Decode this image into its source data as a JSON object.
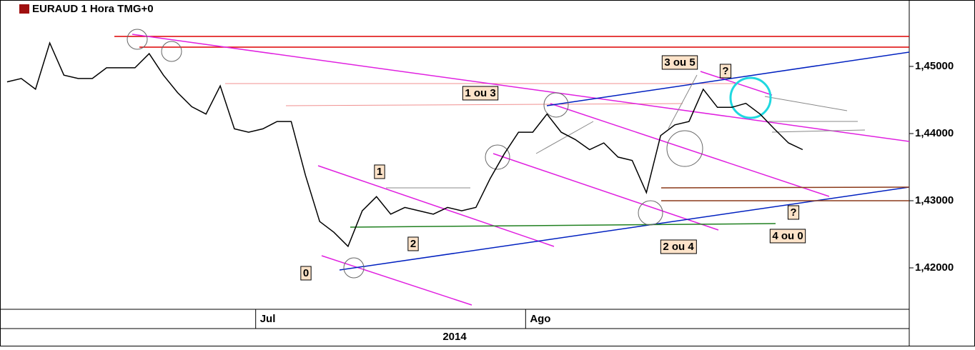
{
  "chart_data": {
    "type": "line",
    "title": "EURAUD 1 Hora TMG+0",
    "categories": [
      null,
      null,
      null,
      null,
      null,
      null,
      null,
      null,
      null,
      null,
      null,
      null,
      null,
      null,
      null,
      null,
      null,
      null,
      "Jul",
      null,
      null,
      null,
      null,
      null,
      null,
      null,
      null,
      null,
      null,
      null,
      null,
      null,
      null,
      null,
      null,
      null,
      null,
      "Ago",
      null,
      null,
      null,
      null,
      null,
      null,
      null,
      null,
      null,
      null,
      null,
      null,
      null,
      null,
      null,
      null,
      null,
      null,
      null,
      null,
      null,
      null,
      null,
      null,
      null,
      null
    ],
    "x_sublabel": "2014",
    "values": [
      1.4477,
      1.4482,
      1.4466,
      1.4535,
      1.4487,
      1.4482,
      1.4482,
      1.4498,
      1.4498,
      1.4498,
      1.4519,
      1.4487,
      1.4461,
      1.444,
      1.4429,
      1.4471,
      1.4407,
      1.4402,
      1.4407,
      1.4418,
      1.4418,
      1.4338,
      1.4269,
      1.4253,
      1.4232,
      1.4285,
      1.4306,
      1.428,
      1.429,
      1.4285,
      1.428,
      1.429,
      1.4285,
      1.429,
      1.4333,
      1.437,
      1.4402,
      1.4402,
      1.4429,
      1.4402,
      1.4391,
      1.4376,
      1.4386,
      1.4365,
      1.436,
      1.4312,
      1.4397,
      1.4413,
      1.4418,
      1.4466,
      1.4439,
      1.4439,
      1.4445,
      1.4429,
      1.4407,
      1.4386,
      1.4376,
      null,
      null,
      null,
      null,
      null,
      null,
      null
    ],
    "color": "#000000",
    "ylim": [
      1.41383,
      1.45989
    ],
    "yticks": [
      {
        "value": 1.42,
        "label": "1,42000"
      },
      {
        "value": 1.43,
        "label": "1,43000"
      },
      {
        "value": 1.44,
        "label": "1,44000"
      },
      {
        "value": 1.45,
        "label": "1,45000"
      }
    ],
    "annotations": [
      "0",
      "1",
      "2",
      "1 ou 3",
      "3 ou 5",
      "?",
      "2 ou 4",
      "?",
      "4 ou 0"
    ]
  }
}
